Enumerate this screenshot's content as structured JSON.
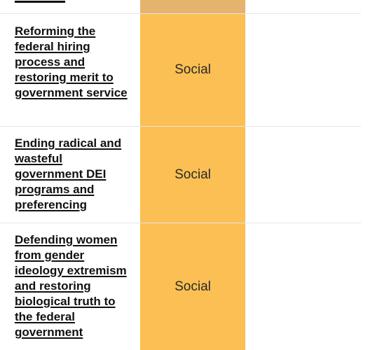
{
  "rows": [
    {
      "title": "Reforming the federal hiring process and restoring merit to government service",
      "category": "Social"
    },
    {
      "title": "Ending radical and wasteful government DEI programs and preferencing",
      "category": "Social"
    },
    {
      "title": "Defending women from gender ideology extremism and restoring biological truth to the federal government",
      "category": "Social"
    }
  ],
  "colors": {
    "category_highlight": "#fbbf53",
    "category_highlight_top": "#e5b36d",
    "row_divider": "#e6e6e6"
  }
}
